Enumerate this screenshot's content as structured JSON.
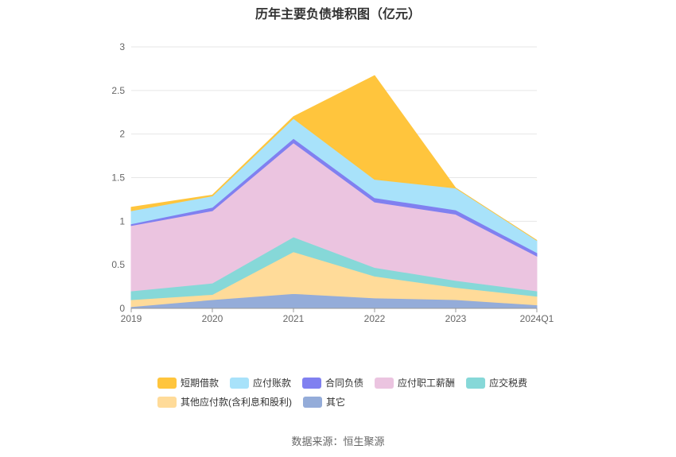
{
  "chart_data": {
    "type": "area",
    "stacked": true,
    "title": "历年主要负债堆积图（亿元）",
    "categories": [
      "2019",
      "2020",
      "2021",
      "2022",
      "2023",
      "2024Q1"
    ],
    "ylim": [
      0,
      3
    ],
    "yticks": [
      "0",
      "0.5",
      "1",
      "1.5",
      "2",
      "2.5",
      "3"
    ],
    "grid": true,
    "legend_position": "bottom",
    "series": [
      {
        "name": "其它",
        "color": "#94acd9",
        "values": [
          0.02,
          0.1,
          0.17,
          0.12,
          0.1,
          0.04
        ]
      },
      {
        "name": "其他应付款(含利息和股利)",
        "color": "#ffdb99",
        "values": [
          0.08,
          0.06,
          0.48,
          0.25,
          0.14,
          0.1
        ]
      },
      {
        "name": "应交税费",
        "color": "#86d8d8",
        "values": [
          0.1,
          0.13,
          0.17,
          0.1,
          0.08,
          0.06
        ]
      },
      {
        "name": "应付职工薪酬",
        "color": "#ebc4e0",
        "values": [
          0.75,
          0.83,
          1.08,
          0.75,
          0.76,
          0.4
        ]
      },
      {
        "name": "合同负债",
        "color": "#8080f0",
        "values": [
          0.02,
          0.04,
          0.05,
          0.05,
          0.05,
          0.04
        ]
      },
      {
        "name": "应付账款",
        "color": "#a8e2fa",
        "values": [
          0.15,
          0.13,
          0.23,
          0.21,
          0.25,
          0.14
        ]
      },
      {
        "name": "短期借款",
        "color": "#ffc53d",
        "values": [
          0.04,
          0.01,
          0.02,
          1.19,
          0.0,
          0.0
        ]
      }
    ]
  },
  "source_label": "数据来源：恒生聚源"
}
